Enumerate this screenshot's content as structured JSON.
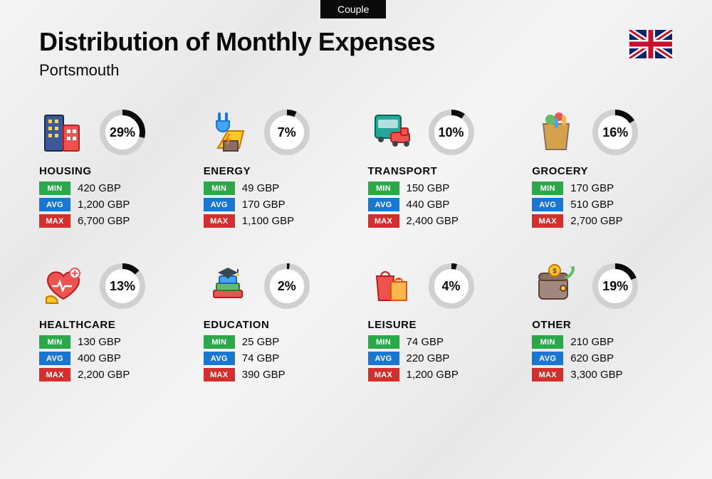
{
  "tab_label": "Couple",
  "title": "Distribution of Monthly Expenses",
  "subtitle": "Portsmouth",
  "currency": "GBP",
  "badges": {
    "min": {
      "label": "MIN",
      "color": "#2ba84a"
    },
    "avg": {
      "label": "AVG",
      "color": "#1976d2"
    },
    "max": {
      "label": "MAX",
      "color": "#d32f2f"
    }
  },
  "ring_style": {
    "radius": 28,
    "stroke_width": 8,
    "track_color": "#d0d0d0",
    "fill_color": "#0a0a0a",
    "bg_color": "#ffffff"
  },
  "flag": {
    "bg": "#012169",
    "white": "#ffffff",
    "red": "#c8102e"
  },
  "categories": [
    {
      "key": "housing",
      "name": "HOUSING",
      "percent": 29,
      "min": "420",
      "avg": "1,200",
      "max": "6,700",
      "icon": "buildings"
    },
    {
      "key": "energy",
      "name": "ENERGY",
      "percent": 7,
      "min": "49",
      "avg": "170",
      "max": "1,100",
      "icon": "energy"
    },
    {
      "key": "transport",
      "name": "TRANSPORT",
      "percent": 10,
      "min": "150",
      "avg": "440",
      "max": "2,400",
      "icon": "transport"
    },
    {
      "key": "grocery",
      "name": "GROCERY",
      "percent": 16,
      "min": "170",
      "avg": "510",
      "max": "2,700",
      "icon": "grocery"
    },
    {
      "key": "healthcare",
      "name": "HEALTHCARE",
      "percent": 13,
      "min": "130",
      "avg": "400",
      "max": "2,200",
      "icon": "healthcare"
    },
    {
      "key": "education",
      "name": "EDUCATION",
      "percent": 2,
      "min": "25",
      "avg": "74",
      "max": "390",
      "icon": "education"
    },
    {
      "key": "leisure",
      "name": "LEISURE",
      "percent": 4,
      "min": "74",
      "avg": "220",
      "max": "1,200",
      "icon": "leisure"
    },
    {
      "key": "other",
      "name": "OTHER",
      "percent": 19,
      "min": "210",
      "avg": "620",
      "max": "3,300",
      "icon": "other"
    }
  ]
}
